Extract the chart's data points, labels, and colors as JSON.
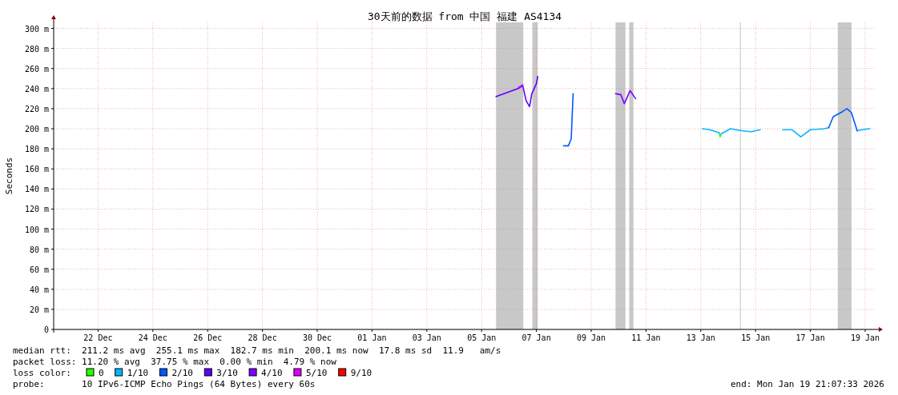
{
  "chart_data": {
    "type": "line",
    "title": "30天前的数据 from 中国 福建 AS4134",
    "ylabel": "Seconds",
    "xlim": [
      "2025-12-20T21:07",
      "2026-01-19T21:07"
    ],
    "xticks": [
      {
        "value": "2025-12-22T12:00",
        "label": "22 Dec"
      },
      {
        "value": "2025-12-24T12:00",
        "label": "24 Dec"
      },
      {
        "value": "2025-12-26T12:00",
        "label": "26 Dec"
      },
      {
        "value": "2025-12-28T12:00",
        "label": "28 Dec"
      },
      {
        "value": "2025-12-30T12:00",
        "label": "30 Dec"
      },
      {
        "value": "2026-01-01T12:00",
        "label": "01 Jan"
      },
      {
        "value": "2026-01-03T12:00",
        "label": "03 Jan"
      },
      {
        "value": "2026-01-05T12:00",
        "label": "05 Jan"
      },
      {
        "value": "2026-01-07T12:00",
        "label": "07 Jan"
      },
      {
        "value": "2026-01-09T12:00",
        "label": "09 Jan"
      },
      {
        "value": "2026-01-11T12:00",
        "label": "11 Jan"
      },
      {
        "value": "2026-01-13T12:00",
        "label": "13 Jan"
      },
      {
        "value": "2026-01-15T12:00",
        "label": "15 Jan"
      },
      {
        "value": "2026-01-17T12:00",
        "label": "17 Jan"
      },
      {
        "value": "2026-01-19T12:00",
        "label": "19 Jan"
      }
    ],
    "ylim": [
      0,
      306
    ],
    "yticks": [
      0,
      {
        "value": 20,
        "label": "20 m"
      },
      {
        "value": 40,
        "label": "40 m"
      },
      {
        "value": 60,
        "label": "60 m"
      },
      {
        "value": 80,
        "label": "80 m"
      },
      {
        "value": 100,
        "label": "100 m"
      },
      {
        "value": 120,
        "label": "120 m"
      },
      {
        "value": 140,
        "label": "140 m"
      },
      {
        "value": 160,
        "label": "160 m"
      },
      {
        "value": 180,
        "label": "180 m"
      },
      {
        "value": 200,
        "label": "200 m"
      },
      {
        "value": 220,
        "label": "220 m"
      },
      {
        "value": 240,
        "label": "240 m"
      },
      {
        "value": 260,
        "label": "260 m"
      },
      {
        "value": 280,
        "label": "280 m"
      },
      {
        "value": 300,
        "label": "300 m"
      }
    ],
    "grid": true,
    "legend": "bottom",
    "legend_title": "loss color:",
    "series": [
      {
        "name": "0",
        "color": "#26ff00",
        "x": [
          "2026-01-14T04:00",
          "2026-01-14T05:00",
          "2026-01-14T06:00"
        ],
        "values": [
          196,
          192,
          195
        ]
      },
      {
        "name": "1/10",
        "color": "#00b8ff",
        "x": [
          "2026-01-13T13:25",
          "2026-01-13T20:00",
          "2026-01-14T04:00",
          null,
          "2026-01-14T06:00",
          "2026-01-14T14:00",
          "2026-01-15T00:00",
          "2026-01-15T08:00",
          "2026-01-15T16:05",
          null,
          "2026-01-16T11:45",
          "2026-01-16T20:00",
          "2026-01-17T03:35",
          "2026-01-17T12:00",
          "2026-01-18T00:00",
          "2026-01-18T04:00",
          null,
          "2026-01-19T05:00",
          "2026-01-19T09:00",
          "2026-01-19T16:00"
        ],
        "values": [
          200,
          199,
          196,
          null,
          195,
          200,
          198,
          197,
          199,
          null,
          199,
          199,
          192,
          199,
          200,
          201,
          null,
          198,
          199,
          200
        ]
      },
      {
        "name": "2/10",
        "color": "#0059ff",
        "x": [
          "2026-01-08T11:45",
          "2026-01-08T16:00",
          "2026-01-08T18:30",
          "2026-01-08T20:10",
          null,
          "2026-01-18T04:00",
          "2026-01-18T08:00",
          "2026-01-18T16:00",
          "2026-01-18T20:00",
          "2026-01-19T00:00",
          "2026-01-19T05:00"
        ],
        "values": [
          183,
          183,
          190,
          235,
          null,
          201,
          212,
          217,
          220,
          216,
          198
        ]
      },
      {
        "name": "3/10",
        "color": "#5e00ff",
        "x": [
          "2026-01-06T00:40",
          "2026-01-06T08:00",
          "2026-01-06T15:00",
          "2026-01-06T20:00",
          "2026-01-07T00:00",
          "2026-01-07T03:00",
          "2026-01-07T06:00",
          "2026-01-07T08:00",
          "2026-01-07T12:00",
          "2026-01-07T13:10"
        ],
        "values": [
          232,
          235,
          238,
          240,
          243,
          228,
          222,
          235,
          245,
          252
        ]
      },
      {
        "name": "4/10",
        "color": "#7e00ff",
        "x": [
          "2026-01-10T09:20",
          "2026-01-10T14:00",
          "2026-01-10T17:00",
          "2026-01-10T19:00",
          "2026-01-10T22:00",
          "2026-01-11T02:55"
        ],
        "values": [
          235,
          234,
          225,
          230,
          238,
          230
        ]
      },
      {
        "name": "5/10",
        "color": "#dd00ff",
        "x": [
          "2026-01-06T20:00",
          "2026-01-07T00:00"
        ],
        "values": [
          241,
          244
        ]
      },
      {
        "name": "9/10",
        "color": "#ff0000"
      }
    ],
    "bands": [
      {
        "axis": "x",
        "from": "2026-01-06T00:40",
        "to": "2026-01-07T00:30",
        "color": "#c8c8c8"
      },
      {
        "axis": "x",
        "from": "2026-01-07T08:25",
        "to": "2026-01-07T13:10",
        "color": "#c8c8c8"
      },
      {
        "axis": "x",
        "from": "2026-01-10T09:20",
        "to": "2026-01-10T18:00",
        "color": "#c8c8c8"
      },
      {
        "axis": "x",
        "from": "2026-01-10T21:20",
        "to": "2026-01-11T01:00",
        "color": "#c8c8c8"
      },
      {
        "axis": "x",
        "from": "2026-01-14T22:20",
        "to": "2026-01-14T23:00",
        "color": "#c8c8c8"
      },
      {
        "axis": "x",
        "from": "2026-01-18T12:00",
        "to": "2026-01-19T00:00",
        "color": "#c8c8c8"
      }
    ],
    "annotations": [
      "median rtt:  211.2 ms avg  255.1 ms max  182.7 ms min  200.1 ms now  17.8 ms sd  11.9   am/s",
      "packet loss: 11.20 % avg  37.75 % max  0.00 % min  4.79 % now",
      "probe:       10 IPv6-ICMP Echo Pings (64 Bytes) every 60s",
      "end: Mon Jan 19 21:07:33 2026"
    ]
  }
}
